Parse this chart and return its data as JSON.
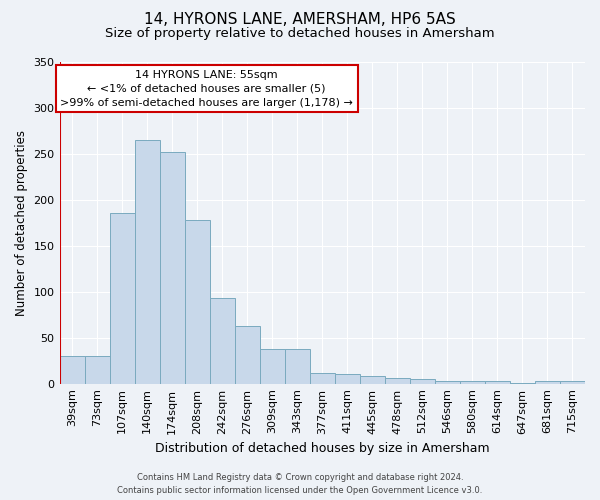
{
  "title1": "14, HYRONS LANE, AMERSHAM, HP6 5AS",
  "title2": "Size of property relative to detached houses in Amersham",
  "xlabel": "Distribution of detached houses by size in Amersham",
  "ylabel": "Number of detached properties",
  "categories": [
    "39sqm",
    "73sqm",
    "107sqm",
    "140sqm",
    "174sqm",
    "208sqm",
    "242sqm",
    "276sqm",
    "309sqm",
    "343sqm",
    "377sqm",
    "411sqm",
    "445sqm",
    "478sqm",
    "512sqm",
    "546sqm",
    "580sqm",
    "614sqm",
    "647sqm",
    "681sqm",
    "715sqm"
  ],
  "values": [
    30,
    30,
    185,
    265,
    252,
    178,
    93,
    63,
    38,
    38,
    12,
    10,
    8,
    6,
    5,
    3,
    3,
    3,
    1,
    3,
    3
  ],
  "bar_color": "#c8d8ea",
  "bar_edge_color": "#7aaabf",
  "annotation_line1": "14 HYRONS LANE: 55sqm",
  "annotation_line2": "← <1% of detached houses are smaller (5)",
  "annotation_line3": ">99% of semi-detached houses are larger (1,178) →",
  "annotation_box_facecolor": "#ffffff",
  "annotation_box_edgecolor": "#cc0000",
  "footer1": "Contains HM Land Registry data © Crown copyright and database right 2024.",
  "footer2": "Contains public sector information licensed under the Open Government Licence v3.0.",
  "background_color": "#eef2f7",
  "ylim": [
    0,
    350
  ],
  "yticks": [
    0,
    50,
    100,
    150,
    200,
    250,
    300,
    350
  ],
  "grid_color": "#ffffff",
  "title1_fontsize": 11,
  "title2_fontsize": 9.5,
  "xlabel_fontsize": 9,
  "ylabel_fontsize": 8.5,
  "tick_fontsize": 8,
  "footer_fontsize": 6,
  "ann_fontsize": 8
}
